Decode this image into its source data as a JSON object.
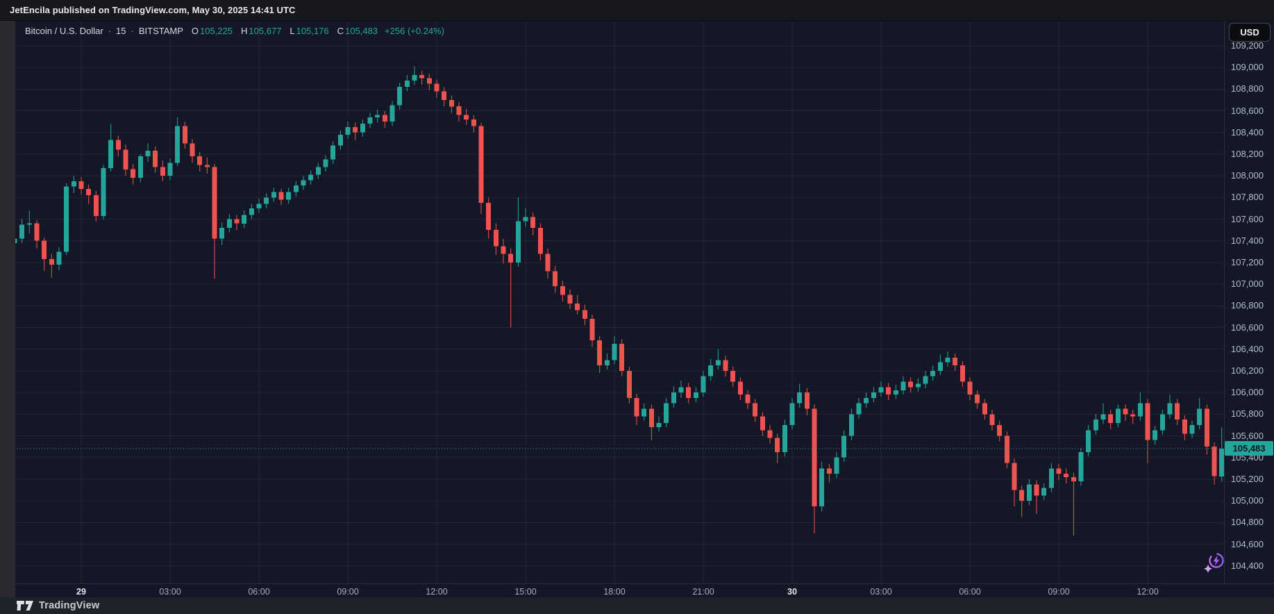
{
  "attribution_bar": {
    "text": "JetEncila published on TradingView.com, May 30, 2025 14:41 UTC"
  },
  "header": {
    "symbol": "Bitcoin / U.S. Dollar",
    "sep1": "·",
    "interval": "15",
    "sep2": "·",
    "exchange": "BITSTAMP",
    "ohlc": [
      {
        "label": "O",
        "value": "105,225"
      },
      {
        "label": "H",
        "value": "105,677"
      },
      {
        "label": "L",
        "value": "105,176"
      },
      {
        "label": "C",
        "value": "105,483"
      }
    ],
    "change": "+256 (+0.24%)",
    "currency_button": "USD"
  },
  "price_label": {
    "value": "105,483"
  },
  "footer": {
    "brand": "TradingView"
  },
  "colors": {
    "up": "#26a69a",
    "down": "#ef5350",
    "background": "#141826",
    "grid": "rgba(201,209,232,0.07)",
    "axis_text": "#b7bdc9",
    "tag_bg": "#26a69a",
    "tag_text": "#0f141c",
    "boost_purple_1": "#c96af0",
    "boost_purple_2": "#7e5bef"
  },
  "chart_data": {
    "type": "candlestick",
    "title": "Bitcoin / U.S. Dollar",
    "interval": "15",
    "exchange": "BITSTAMP",
    "last_price": 105483,
    "ylim": [
      104238,
      109430
    ],
    "grid": true,
    "price_axis_ticks": [
      {
        "price": 109200,
        "label": "109,200"
      },
      {
        "price": 109000,
        "label": "109,000"
      },
      {
        "price": 108800,
        "label": "108,800"
      },
      {
        "price": 108600,
        "label": "108,600"
      },
      {
        "price": 108400,
        "label": "108,400"
      },
      {
        "price": 108200,
        "label": "108,200"
      },
      {
        "price": 108000,
        "label": "108,000"
      },
      {
        "price": 107800,
        "label": "107,800"
      },
      {
        "price": 107600,
        "label": "107,600"
      },
      {
        "price": 107400,
        "label": "107,400"
      },
      {
        "price": 107200,
        "label": "107,200"
      },
      {
        "price": 107000,
        "label": "107,000"
      },
      {
        "price": 106800,
        "label": "106,800"
      },
      {
        "price": 106600,
        "label": "106,600"
      },
      {
        "price": 106400,
        "label": "106,400"
      },
      {
        "price": 106200,
        "label": "106,200"
      },
      {
        "price": 106000,
        "label": "106,000"
      },
      {
        "price": 105800,
        "label": "105,800"
      },
      {
        "price": 105600,
        "label": "105,600"
      },
      {
        "price": 105400,
        "label": "105,400"
      },
      {
        "price": 105200,
        "label": "105,200"
      },
      {
        "price": 105000,
        "label": "105,000"
      },
      {
        "price": 104800,
        "label": "104,800"
      },
      {
        "price": 104600,
        "label": "104,600"
      },
      {
        "price": 104400,
        "label": "104,400"
      }
    ],
    "time_axis_ticks": [
      {
        "i": 10,
        "label": "29",
        "day": true
      },
      {
        "i": 22,
        "label": "03:00"
      },
      {
        "i": 34,
        "label": "06:00"
      },
      {
        "i": 46,
        "label": "09:00"
      },
      {
        "i": 58,
        "label": "12:00"
      },
      {
        "i": 70,
        "label": "15:00"
      },
      {
        "i": 82,
        "label": "18:00"
      },
      {
        "i": 94,
        "label": "21:00"
      },
      {
        "i": 106,
        "label": "30",
        "day": true
      },
      {
        "i": 118,
        "label": "03:00"
      },
      {
        "i": 130,
        "label": "06:00"
      },
      {
        "i": 142,
        "label": "09:00"
      },
      {
        "i": 154,
        "label": "12:00"
      }
    ],
    "candles_format": [
      "open",
      "high",
      "low",
      "close"
    ],
    "candles": [
      [
        107350,
        107480,
        107280,
        107380
      ],
      [
        107380,
        107500,
        107320,
        107420
      ],
      [
        107420,
        107600,
        107380,
        107550
      ],
      [
        107550,
        107680,
        107470,
        107560
      ],
      [
        107560,
        107590,
        107330,
        107400
      ],
      [
        107400,
        107430,
        107120,
        107230
      ],
      [
        107230,
        107280,
        107060,
        107180
      ],
      [
        107180,
        107340,
        107130,
        107300
      ],
      [
        107300,
        107930,
        107270,
        107900
      ],
      [
        107900,
        108000,
        107840,
        107950
      ],
      [
        107950,
        107990,
        107830,
        107880
      ],
      [
        107880,
        107920,
        107740,
        107820
      ],
      [
        107820,
        107860,
        107580,
        107630
      ],
      [
        107630,
        108100,
        107600,
        108070
      ],
      [
        108070,
        108480,
        108040,
        108330
      ],
      [
        108330,
        108370,
        108180,
        108240
      ],
      [
        108240,
        108290,
        108000,
        108060
      ],
      [
        108060,
        108110,
        107920,
        107980
      ],
      [
        107980,
        108200,
        107940,
        108180
      ],
      [
        108180,
        108300,
        108130,
        108230
      ],
      [
        108230,
        108270,
        108030,
        108080
      ],
      [
        108080,
        108140,
        107950,
        108000
      ],
      [
        108000,
        108160,
        107960,
        108120
      ],
      [
        108120,
        108540,
        108090,
        108460
      ],
      [
        108460,
        108500,
        108250,
        108300
      ],
      [
        108300,
        108340,
        108120,
        108180
      ],
      [
        108180,
        108220,
        108040,
        108100
      ],
      [
        108100,
        108170,
        108020,
        108080
      ],
      [
        108080,
        108110,
        107050,
        107420
      ],
      [
        107420,
        107570,
        107360,
        107520
      ],
      [
        107520,
        107650,
        107480,
        107600
      ],
      [
        107600,
        107640,
        107500,
        107560
      ],
      [
        107560,
        107680,
        107520,
        107640
      ],
      [
        107640,
        107740,
        107600,
        107700
      ],
      [
        107700,
        107790,
        107660,
        107740
      ],
      [
        107740,
        107840,
        107700,
        107800
      ],
      [
        107800,
        107890,
        107760,
        107850
      ],
      [
        107850,
        107880,
        107730,
        107780
      ],
      [
        107780,
        107890,
        107740,
        107850
      ],
      [
        107850,
        107950,
        107810,
        107910
      ],
      [
        107910,
        108000,
        107870,
        107960
      ],
      [
        107960,
        108050,
        107920,
        108010
      ],
      [
        108010,
        108120,
        107970,
        108080
      ],
      [
        108080,
        108190,
        108040,
        108150
      ],
      [
        108150,
        108320,
        108110,
        108280
      ],
      [
        108280,
        108420,
        108240,
        108380
      ],
      [
        108380,
        108500,
        108340,
        108450
      ],
      [
        108450,
        108490,
        108330,
        108400
      ],
      [
        108400,
        108520,
        108360,
        108480
      ],
      [
        108480,
        108580,
        108440,
        108540
      ],
      [
        108540,
        108610,
        108490,
        108560
      ],
      [
        108560,
        108600,
        108440,
        108500
      ],
      [
        108500,
        108690,
        108460,
        108650
      ],
      [
        108650,
        108860,
        108610,
        108820
      ],
      [
        108820,
        108930,
        108780,
        108880
      ],
      [
        108880,
        109010,
        108840,
        108930
      ],
      [
        108930,
        108970,
        108840,
        108900
      ],
      [
        108900,
        108940,
        108790,
        108850
      ],
      [
        108850,
        108890,
        108720,
        108780
      ],
      [
        108780,
        108820,
        108640,
        108700
      ],
      [
        108700,
        108740,
        108580,
        108640
      ],
      [
        108640,
        108680,
        108500,
        108560
      ],
      [
        108560,
        108620,
        108470,
        108520
      ],
      [
        108520,
        108560,
        108400,
        108460
      ],
      [
        108460,
        108490,
        107650,
        107750
      ],
      [
        107750,
        107800,
        107420,
        107500
      ],
      [
        107500,
        107560,
        107270,
        107350
      ],
      [
        107350,
        107420,
        107190,
        107280
      ],
      [
        107280,
        107330,
        106600,
        107200
      ],
      [
        107200,
        107800,
        107160,
        107580
      ],
      [
        107580,
        107700,
        107530,
        107620
      ],
      [
        107620,
        107660,
        107450,
        107520
      ],
      [
        107520,
        107560,
        107220,
        107280
      ],
      [
        107280,
        107330,
        107050,
        107120
      ],
      [
        107120,
        107170,
        106920,
        106980
      ],
      [
        106980,
        107030,
        106840,
        106900
      ],
      [
        106900,
        106950,
        106770,
        106820
      ],
      [
        106820,
        106900,
        106720,
        106760
      ],
      [
        106760,
        106810,
        106620,
        106680
      ],
      [
        106680,
        106720,
        106420,
        106480
      ],
      [
        106480,
        106520,
        106180,
        106250
      ],
      [
        106250,
        106360,
        106210,
        106300
      ],
      [
        106300,
        106520,
        106260,
        106450
      ],
      [
        106450,
        106490,
        106150,
        106200
      ],
      [
        106200,
        106240,
        105900,
        105950
      ],
      [
        105950,
        105990,
        105700,
        105780
      ],
      [
        105780,
        105900,
        105740,
        105850
      ],
      [
        105850,
        105890,
        105560,
        105680
      ],
      [
        105680,
        105780,
        105640,
        105720
      ],
      [
        105720,
        105950,
        105680,
        105900
      ],
      [
        105900,
        106060,
        105860,
        106000
      ],
      [
        106000,
        106110,
        105950,
        106050
      ],
      [
        106050,
        106090,
        105900,
        105950
      ],
      [
        105950,
        106050,
        105910,
        106000
      ],
      [
        106000,
        106200,
        105960,
        106150
      ],
      [
        106150,
        106310,
        106110,
        106250
      ],
      [
        106250,
        106400,
        106210,
        106300
      ],
      [
        106300,
        106340,
        106150,
        106200
      ],
      [
        106200,
        106240,
        106050,
        106100
      ],
      [
        106100,
        106140,
        105930,
        105980
      ],
      [
        105980,
        106020,
        105850,
        105900
      ],
      [
        105900,
        105940,
        105730,
        105780
      ],
      [
        105780,
        105820,
        105600,
        105650
      ],
      [
        105650,
        105700,
        105530,
        105580
      ],
      [
        105580,
        105620,
        105350,
        105450
      ],
      [
        105450,
        105750,
        105410,
        105700
      ],
      [
        105700,
        105950,
        105660,
        105900
      ],
      [
        105900,
        106080,
        105860,
        106000
      ],
      [
        106000,
        106040,
        105790,
        105850
      ],
      [
        105850,
        105890,
        104700,
        104950
      ],
      [
        104950,
        105360,
        104900,
        105300
      ],
      [
        105300,
        105340,
        105170,
        105250
      ],
      [
        105250,
        105450,
        105210,
        105400
      ],
      [
        105400,
        105650,
        105360,
        105600
      ],
      [
        105600,
        105850,
        105560,
        105800
      ],
      [
        105800,
        105950,
        105760,
        105900
      ],
      [
        105900,
        106000,
        105860,
        105950
      ],
      [
        105950,
        106050,
        105910,
        106000
      ],
      [
        106000,
        106100,
        105960,
        106050
      ],
      [
        106050,
        106090,
        105930,
        105980
      ],
      [
        105980,
        106070,
        105940,
        106020
      ],
      [
        106020,
        106150,
        105980,
        106100
      ],
      [
        106100,
        106140,
        106000,
        106050
      ],
      [
        106050,
        106130,
        106010,
        106080
      ],
      [
        106080,
        106200,
        106040,
        106150
      ],
      [
        106150,
        106250,
        106110,
        106200
      ],
      [
        106200,
        106350,
        106160,
        106280
      ],
      [
        106280,
        106380,
        106240,
        106320
      ],
      [
        106320,
        106360,
        106200,
        106250
      ],
      [
        106250,
        106290,
        106050,
        106100
      ],
      [
        106100,
        106140,
        105930,
        105980
      ],
      [
        105980,
        106020,
        105850,
        105900
      ],
      [
        105900,
        105940,
        105750,
        105800
      ],
      [
        105800,
        105840,
        105650,
        105700
      ],
      [
        105700,
        105740,
        105550,
        105600
      ],
      [
        105600,
        105640,
        105300,
        105350
      ],
      [
        105350,
        105390,
        104950,
        105100
      ],
      [
        105100,
        105140,
        104850,
        105000
      ],
      [
        105000,
        105200,
        104960,
        105150
      ],
      [
        105150,
        105190,
        104880,
        105050
      ],
      [
        105050,
        105160,
        105010,
        105120
      ],
      [
        105120,
        105350,
        105080,
        105300
      ],
      [
        105300,
        105340,
        105190,
        105250
      ],
      [
        105250,
        105300,
        105160,
        105220
      ],
      [
        105220,
        105260,
        104680,
        105180
      ],
      [
        105180,
        105490,
        105140,
        105450
      ],
      [
        105450,
        105700,
        105410,
        105650
      ],
      [
        105650,
        105800,
        105610,
        105750
      ],
      [
        105750,
        105900,
        105710,
        105800
      ],
      [
        105800,
        105840,
        105660,
        105720
      ],
      [
        105720,
        105890,
        105680,
        105850
      ],
      [
        105850,
        105890,
        105740,
        105800
      ],
      [
        105800,
        105840,
        105710,
        105780
      ],
      [
        105780,
        106000,
        105740,
        105900
      ],
      [
        105900,
        105940,
        105350,
        105560
      ],
      [
        105560,
        105690,
        105520,
        105650
      ],
      [
        105650,
        105840,
        105610,
        105800
      ],
      [
        105800,
        105980,
        105760,
        105900
      ],
      [
        105900,
        105940,
        105700,
        105750
      ],
      [
        105750,
        105790,
        105560,
        105620
      ],
      [
        105620,
        105740,
        105580,
        105700
      ],
      [
        105700,
        105950,
        105660,
        105850
      ],
      [
        105850,
        105890,
        105430,
        105500
      ],
      [
        105500,
        105540,
        105150,
        105227
      ],
      [
        105225,
        105677,
        105176,
        105483
      ]
    ]
  }
}
